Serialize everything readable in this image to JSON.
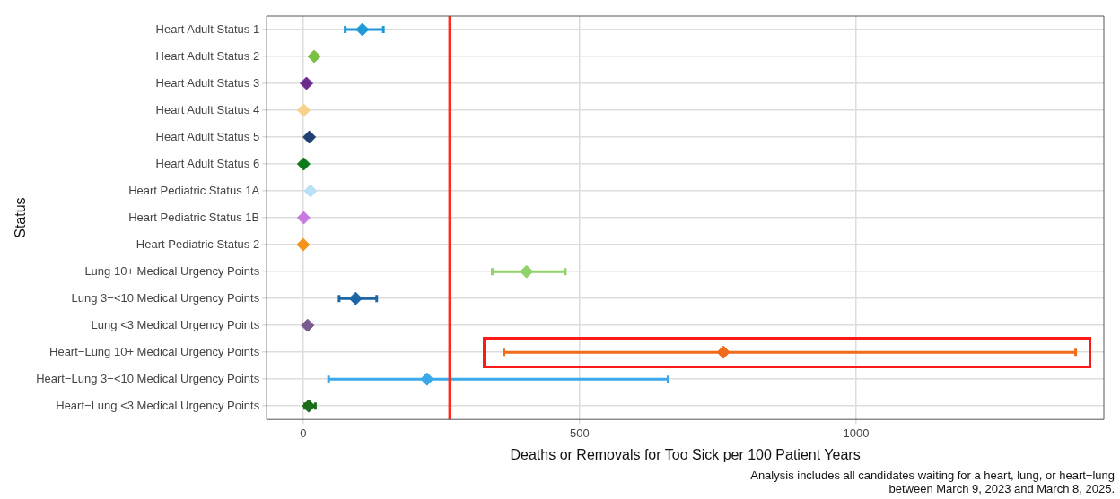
{
  "chart_data": {
    "type": "scatter",
    "orientation": "horizontal",
    "ylabel": "Status",
    "xlabel": "Deaths or Removals for Too Sick per 100 Patient Years",
    "categories": [
      "Heart Adult Status 1",
      "Heart Adult Status 2",
      "Heart Adult Status 3",
      "Heart Adult Status 4",
      "Heart Adult Status 5",
      "Heart Adult Status 6",
      "Heart Pediatric Status 1A",
      "Heart Pediatric Status 1B",
      "Heart Pediatric Status 2",
      "Lung 10+ Medical Urgency Points",
      "Lung 3−<10 Medical Urgency Points",
      "Lung <3 Medical Urgency Points",
      "Heart−Lung 10+ Medical Urgency Points",
      "Heart−Lung 3−<10 Medical Urgency Points",
      "Heart−Lung <3 Medical Urgency Points"
    ],
    "values": [
      107,
      20,
      6,
      1,
      11,
      1,
      13,
      1,
      0,
      404,
      95,
      8,
      760,
      224,
      10
    ],
    "errors": [
      [
        76,
        145
      ],
      null,
      null,
      null,
      null,
      null,
      null,
      null,
      null,
      [
        342,
        474
      ],
      [
        65,
        133
      ],
      null,
      [
        363,
        1397
      ],
      [
        46,
        660
      ],
      [
        3,
        22
      ]
    ],
    "colors": [
      "#1f9ad6",
      "#7ac143",
      "#6a2c8c",
      "#f7d08a",
      "#1f3f73",
      "#0a7a1a",
      "#b9e0f5",
      "#c97ae0",
      "#f5941d",
      "#8fd16a",
      "#1c66a8",
      "#7b5a8f",
      "#f26a1b",
      "#39a9ea",
      "#1a6b1a"
    ],
    "xlim": [
      -66,
      1448
    ],
    "xticks": [
      0,
      500,
      1000
    ],
    "grid": true,
    "marker": "diamond",
    "legend": false,
    "ref_lines": [
      {
        "axis": "x",
        "value": 265,
        "color": "#ff2a1a"
      }
    ],
    "annotations": [
      "Analysis includes all candidates waiting for a heart, lung, or heart−lung\nbetween March 9, 2023 and March 8, 2025."
    ]
  }
}
